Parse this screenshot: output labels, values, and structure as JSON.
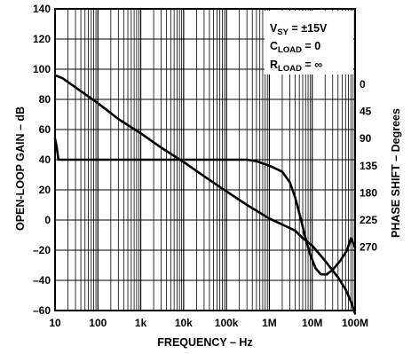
{
  "chart_data": {
    "type": "line",
    "xlabel": "FREQUENCY – Hz",
    "ylabel_left": "OPEN-LOOP GAIN – dB",
    "ylabel_right": "PHASE SHIFT – Degrees",
    "xscale": "log",
    "xlim": [
      10,
      100000000
    ],
    "ylim_left": [
      -60,
      140
    ],
    "x_ticks": [
      {
        "value": 10,
        "label": "10"
      },
      {
        "value": 100,
        "label": "100"
      },
      {
        "value": 1000,
        "label": "1k"
      },
      {
        "value": 10000,
        "label": "10k"
      },
      {
        "value": 100000,
        "label": "100k"
      },
      {
        "value": 1000000,
        "label": "1M"
      },
      {
        "value": 10000000,
        "label": "10M"
      },
      {
        "value": 100000000,
        "label": "100M"
      }
    ],
    "left_ticks": [
      140,
      120,
      100,
      80,
      60,
      40,
      20,
      0,
      -20,
      -40,
      -60
    ],
    "left_tick_labels": [
      "140",
      "120",
      "100",
      "80",
      "60",
      "40",
      "20",
      "0",
      "–20",
      "–40",
      "–60"
    ],
    "right_ticks": [
      {
        "label": "0",
        "gain_equiv": 90
      },
      {
        "label": "45",
        "gain_equiv": 72
      },
      {
        "label": "90",
        "gain_equiv": 54
      },
      {
        "label": "135",
        "gain_equiv": 36
      },
      {
        "label": "180",
        "gain_equiv": 18
      },
      {
        "label": "225",
        "gain_equiv": 0
      },
      {
        "label": "270",
        "gain_equiv": -18
      }
    ],
    "grid": true,
    "legend_position": "top-right",
    "legend": {
      "line1_main": "V",
      "line1_sub": "SY",
      "line1_rest": " = ±15V",
      "line2_main": "C",
      "line2_sub": "LOAD",
      "line2_rest": " = 0",
      "line3_main": "R",
      "line3_sub": "LOAD",
      "line3_rest": " = ∞"
    },
    "series": [
      {
        "points": [
          [
            10,
            96
          ],
          [
            15,
            94
          ],
          [
            30,
            88
          ],
          [
            100,
            77.5
          ],
          [
            300,
            67
          ],
          [
            1000,
            57.5
          ],
          [
            3000,
            48
          ],
          [
            10000,
            38.5
          ],
          [
            30000,
            29
          ],
          [
            100000,
            19
          ],
          [
            300000,
            10
          ],
          [
            1000000,
            1
          ],
          [
            2000000,
            -3
          ],
          [
            4000000,
            -7
          ],
          [
            6000000,
            -12
          ],
          [
            10000000,
            -17
          ],
          [
            20000000,
            -27
          ],
          [
            40000000,
            -38
          ],
          [
            60000000,
            -46
          ],
          [
            80000000,
            -54
          ],
          [
            100000000,
            -62
          ]
        ]
      },
      {
        "points": [
          [
            10,
            54
          ],
          [
            11,
            48
          ],
          [
            12,
            40
          ],
          [
            100,
            40
          ],
          [
            1000,
            40
          ],
          [
            10000,
            40
          ],
          [
            100000,
            40
          ],
          [
            300000,
            40
          ],
          [
            500000,
            39
          ],
          [
            800000,
            37
          ],
          [
            1200000,
            35
          ],
          [
            2000000,
            32
          ],
          [
            3000000,
            25
          ],
          [
            4000000,
            15
          ],
          [
            5500000,
            0
          ],
          [
            7000000,
            -12
          ],
          [
            9000000,
            -23
          ],
          [
            12000000,
            -32
          ],
          [
            16000000,
            -36
          ],
          [
            22000000,
            -36
          ],
          [
            30000000,
            -33
          ],
          [
            45000000,
            -27
          ],
          [
            65000000,
            -20
          ],
          [
            80000000,
            -12
          ],
          [
            100000000,
            -18
          ]
        ]
      }
    ]
  }
}
